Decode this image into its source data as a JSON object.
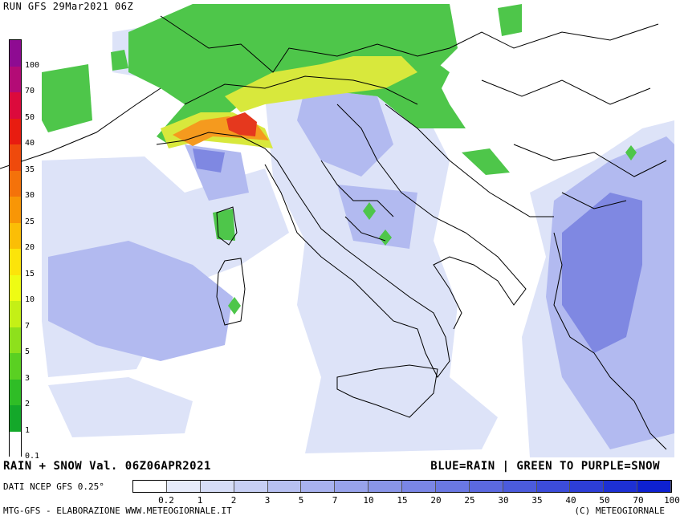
{
  "header": {
    "run_label": "RUN GFS 29Mar2021 06Z"
  },
  "footer": {
    "title": "RAIN + SNOW Val. 06Z06APR2021",
    "legend_title": "BLUE=RAIN | GREEN TO PURPLE=SNOW",
    "source": "DATI NCEP GFS 0.25°",
    "credit": "MTG-GFS - ELABORAZIONE WWW.METEOGIORNALE.IT",
    "copyright": "(C) METEOGIORNALE"
  },
  "snow_scale": {
    "labels": [
      "100",
      "70",
      "50",
      "40",
      "35",
      "30",
      "25",
      "20",
      "15",
      "10",
      "7",
      "5",
      "3",
      "2",
      "1",
      "0.1"
    ],
    "colors": [
      "#8e0b92",
      "#b30b76",
      "#dc0a3c",
      "#e81c10",
      "#ef4a0c",
      "#f4720a",
      "#f89606",
      "#fbbe06",
      "#fce40a",
      "#eefc14",
      "#c4f016",
      "#8ee01c",
      "#5ad022",
      "#2fbd26",
      "#14a82a",
      "#ffffff"
    ]
  },
  "rain_scale": {
    "labels": [
      "0.2",
      "1",
      "2",
      "3",
      "5",
      "7",
      "10",
      "15",
      "20",
      "25",
      "30",
      "35",
      "40",
      "50",
      "70",
      "100"
    ],
    "colors": [
      "#ffffff",
      "#e6ebfa",
      "#d6ddf7",
      "#c7cff4",
      "#b7c0f1",
      "#a8b2ee",
      "#98a3eb",
      "#8995e8",
      "#7a86e6",
      "#6a78e3",
      "#5b69e0",
      "#4b5bdd",
      "#3c4cda",
      "#2d3ed7",
      "#1d30d4",
      "#0e21d1"
    ]
  },
  "map_colors": {
    "rain_light": "#dbe2f8",
    "rain_mid": "#b0b8ef",
    "rain_heavy": "#7d86e2",
    "snow_green": "#4ec64a",
    "snow_yellow": "#d6e83a",
    "snow_orange": "#f59a1e",
    "snow_red": "#e5381e"
  }
}
